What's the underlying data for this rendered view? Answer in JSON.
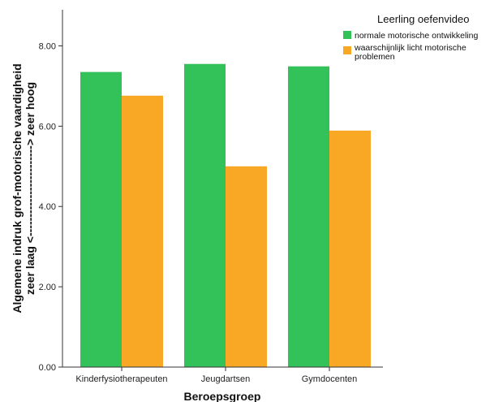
{
  "chart_data": {
    "type": "bar",
    "categories": [
      "Kinderfysiotherapeuten",
      "Jeugdartsen",
      "Gymdocenten"
    ],
    "series": [
      {
        "name": "normale motorische ontwikkeling",
        "values": [
          7.35,
          7.55,
          7.49
        ],
        "color": "#33c15a"
      },
      {
        "name": "waarschijnlijk licht motorische problemen",
        "name_lines": [
          "waarschijnlijk licht motorische",
          "problemen"
        ],
        "values": [
          6.76,
          5.0,
          5.89
        ],
        "color": "#f8a825"
      }
    ],
    "xlabel": "Beroepsgroep",
    "ylabel_lines": [
      "Algemene indruk grof-motorische vaardigheid",
      "zeer laag <------------------------> zeer hoog"
    ],
    "ylim": [
      0,
      8.9
    ],
    "yticks": [
      "0.00",
      "2.00",
      "4.00",
      "6.00",
      "8.00"
    ],
    "legend_title": "Leerling oefenvideo",
    "legend_position": "top-right",
    "grid": false
  }
}
